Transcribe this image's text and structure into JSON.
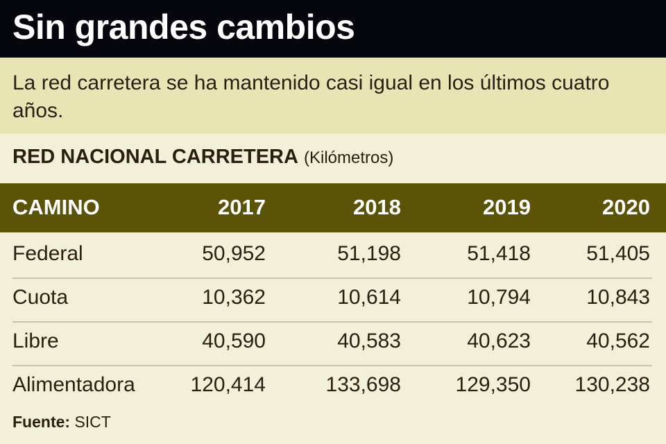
{
  "header": {
    "title": "Sin grandes cambios",
    "subtitle": "La red carretera se ha mantenido casi igual en los últimos cuatro años."
  },
  "table_title": {
    "main": "RED NACIONAL CARRETERA",
    "unit": "(Kilómetros)"
  },
  "source": {
    "label": "Fuente:",
    "value": "SICT"
  },
  "colors": {
    "title_bg": "#06060f",
    "subtitle_bg": "#e8e4b4",
    "header_bg": "#5b5408",
    "body_bg": "#f2f0d8"
  },
  "chart_data": {
    "type": "table",
    "title": "RED NACIONAL CARRETERA (Kilómetros)",
    "columns": [
      "CAMINO",
      "2017",
      "2018",
      "2019",
      "2020"
    ],
    "rows": [
      {
        "label": "Federal",
        "values": [
          "50,952",
          "51,198",
          "51,418",
          "51,405"
        ]
      },
      {
        "label": "Cuota",
        "values": [
          "10,362",
          "10,614",
          "10,794",
          "10,843"
        ]
      },
      {
        "label": "Libre",
        "values": [
          "40,590",
          "40,583",
          "40,623",
          "40,562"
        ]
      },
      {
        "label": "Alimentadora",
        "values": [
          "120,414",
          "133,698",
          "129,350",
          "130,238"
        ]
      }
    ]
  }
}
